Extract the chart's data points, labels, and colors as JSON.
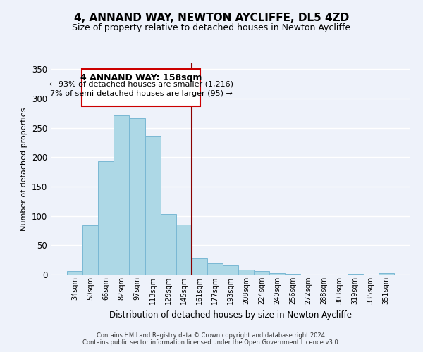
{
  "title": "4, ANNAND WAY, NEWTON AYCLIFFE, DL5 4ZD",
  "subtitle": "Size of property relative to detached houses in Newton Aycliffe",
  "xlabel": "Distribution of detached houses by size in Newton Aycliffe",
  "ylabel": "Number of detached properties",
  "bar_labels": [
    "34sqm",
    "50sqm",
    "66sqm",
    "82sqm",
    "97sqm",
    "113sqm",
    "129sqm",
    "145sqm",
    "161sqm",
    "177sqm",
    "193sqm",
    "208sqm",
    "224sqm",
    "240sqm",
    "256sqm",
    "272sqm",
    "288sqm",
    "303sqm",
    "319sqm",
    "335sqm",
    "351sqm"
  ],
  "bar_values": [
    6,
    84,
    193,
    271,
    266,
    237,
    103,
    85,
    28,
    19,
    16,
    8,
    6,
    3,
    1,
    0,
    0,
    0,
    1,
    0,
    2
  ],
  "bar_color": "#add8e6",
  "bar_edge_color": "#7ab8d4",
  "vline_x_idx": 8,
  "vline_color": "#8b0000",
  "annotation_title": "4 ANNAND WAY: 158sqm",
  "annotation_line1": "← 93% of detached houses are smaller (1,216)",
  "annotation_line2": "7% of semi-detached houses are larger (95) →",
  "box_color": "#ffffff",
  "box_edge_color": "#cc0000",
  "ylim": [
    0,
    360
  ],
  "yticks": [
    0,
    50,
    100,
    150,
    200,
    250,
    300,
    350
  ],
  "footnote1": "Contains HM Land Registry data © Crown copyright and database right 2024.",
  "footnote2": "Contains public sector information licensed under the Open Government Licence v3.0.",
  "bg_color": "#eef2fa"
}
